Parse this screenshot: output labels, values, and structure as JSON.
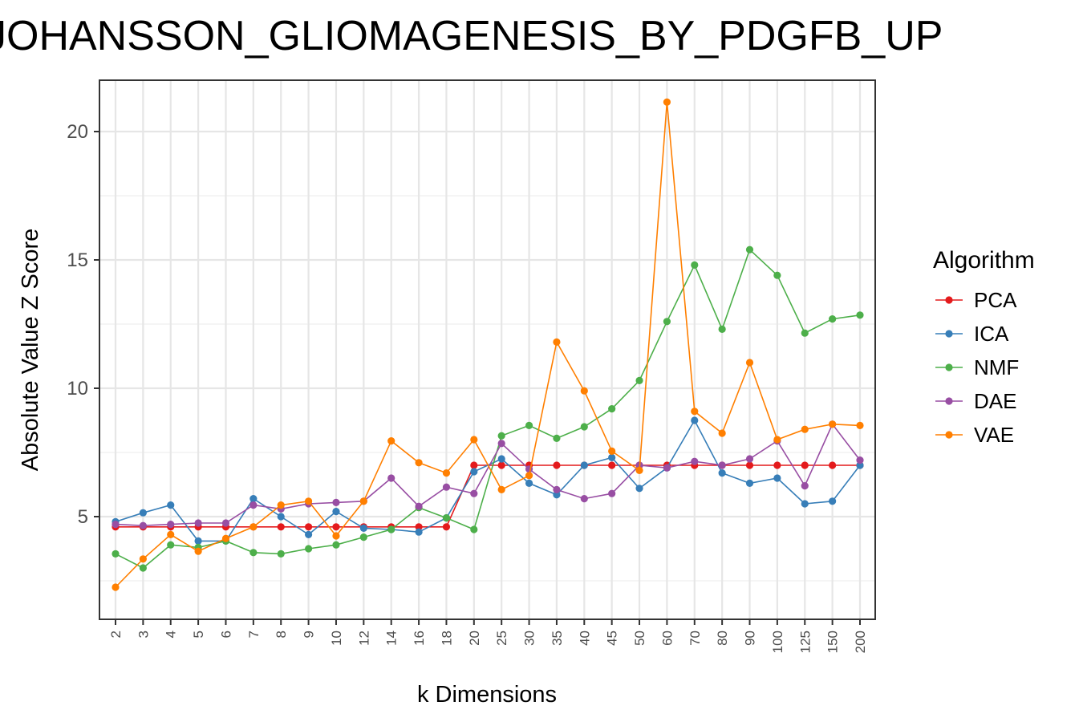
{
  "chart_data": {
    "type": "line",
    "title": "JOHANSSON_GLIOMAGENESIS_BY_PDGFB_UP",
    "xlabel": "k Dimensions",
    "ylabel": "Absolute Value Z Score",
    "ylim": [
      1.0,
      22.0
    ],
    "yticks": [
      5,
      10,
      15,
      20
    ],
    "grid": true,
    "legend_title": "Algorithm",
    "legend_position": "right",
    "categories": [
      "2",
      "3",
      "4",
      "5",
      "6",
      "7",
      "8",
      "9",
      "10",
      "12",
      "14",
      "16",
      "18",
      "20",
      "25",
      "30",
      "35",
      "40",
      "45",
      "50",
      "60",
      "70",
      "80",
      "90",
      "100",
      "125",
      "150",
      "200"
    ],
    "series": [
      {
        "name": "PCA",
        "color": "#E41A1C",
        "values": [
          4.6,
          4.6,
          4.6,
          4.6,
          4.6,
          4.6,
          4.6,
          4.6,
          4.6,
          4.6,
          4.6,
          4.6,
          4.6,
          7.0,
          7.0,
          7.0,
          7.0,
          7.0,
          7.0,
          7.0,
          7.0,
          7.0,
          7.0,
          7.0,
          7.0,
          7.0,
          7.0,
          7.0
        ]
      },
      {
        "name": "ICA",
        "color": "#377EB8",
        "values": [
          4.8,
          5.15,
          5.45,
          4.05,
          4.05,
          5.7,
          5.0,
          4.3,
          5.2,
          4.55,
          4.5,
          4.4,
          4.95,
          6.75,
          7.25,
          6.3,
          5.85,
          7.0,
          7.3,
          6.1,
          6.9,
          8.75,
          6.7,
          6.3,
          6.5,
          5.5,
          5.6,
          7.0
        ]
      },
      {
        "name": "NMF",
        "color": "#4DAF4A",
        "values": [
          3.55,
          3.0,
          3.9,
          3.8,
          4.05,
          3.6,
          3.55,
          3.75,
          3.9,
          4.2,
          4.5,
          5.35,
          4.95,
          4.5,
          8.15,
          8.55,
          8.05,
          8.5,
          9.2,
          10.3,
          12.6,
          14.8,
          12.3,
          15.4,
          14.4,
          12.15,
          12.7,
          12.85
        ]
      },
      {
        "name": "DAE",
        "color": "#984EA3",
        "values": [
          4.7,
          4.65,
          4.7,
          4.75,
          4.75,
          5.45,
          5.3,
          5.5,
          5.55,
          5.6,
          6.5,
          5.4,
          6.15,
          5.9,
          7.85,
          6.85,
          6.05,
          5.7,
          5.9,
          7.0,
          6.9,
          7.15,
          7.0,
          7.25,
          7.95,
          6.2,
          8.6,
          7.2
        ]
      },
      {
        "name": "VAE",
        "color": "#FF7F00",
        "values": [
          2.25,
          3.35,
          4.3,
          3.65,
          4.15,
          4.6,
          5.45,
          5.6,
          4.25,
          5.6,
          7.95,
          7.1,
          6.7,
          8.0,
          6.05,
          6.6,
          11.8,
          9.9,
          7.55,
          6.8,
          21.15,
          9.1,
          8.25,
          11.0,
          8.0,
          8.4,
          8.6,
          8.55
        ]
      }
    ]
  }
}
